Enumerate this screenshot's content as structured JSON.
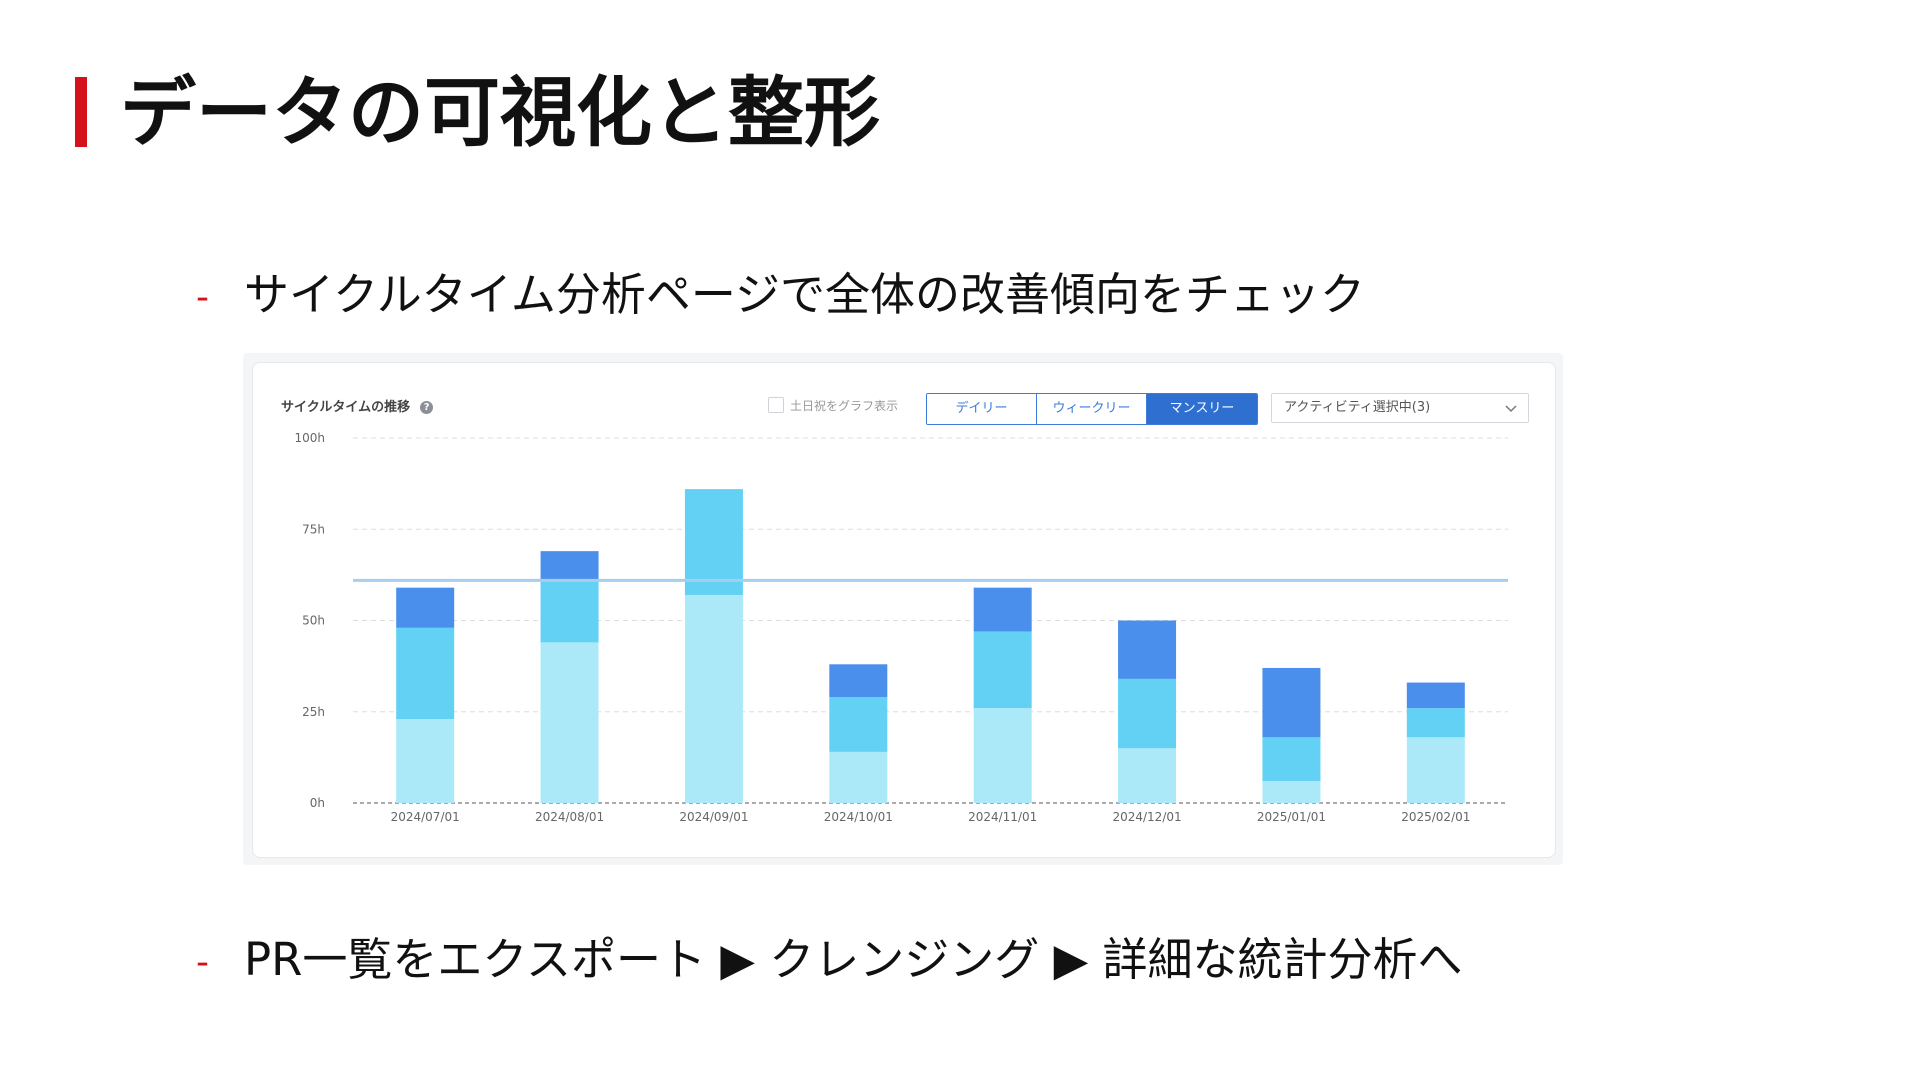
{
  "slide": {
    "title": "データの可視化と整形",
    "bullet_marker": "-",
    "bullet1": "サイクルタイム分析ページで全体の改善傾向をチェック",
    "bullet2": "PR一覧をエクスポート ▶ クレンジング ▶ 詳細な統計分析へ",
    "accent_color": "#d4121c"
  },
  "widget": {
    "title": "サイクルタイムの推移",
    "help_icon": "question-icon",
    "holiday_label": "土日祝をグラフ表示",
    "holiday_checked": false,
    "period_buttons": [
      "デイリー",
      "ウィークリー",
      "マンスリー"
    ],
    "active_period": "マンスリー",
    "activity_select": "アクティビティ選択中(3)",
    "select_icon": "chevron-down-icon"
  },
  "chart_data": {
    "type": "bar",
    "stacked": true,
    "categories": [
      "2024/07/01",
      "2024/08/01",
      "2024/09/01",
      "2024/10/01",
      "2024/11/01",
      "2024/12/01",
      "2025/01/01",
      "2025/02/01"
    ],
    "series": [
      {
        "values": [
          23,
          44,
          57,
          14,
          26,
          15,
          6,
          18
        ],
        "color": "#abe9f9"
      },
      {
        "values": [
          25,
          17,
          29,
          15,
          21,
          19,
          12,
          8
        ],
        "color": "#62d1f4"
      },
      {
        "values": [
          11,
          8,
          0,
          9,
          12,
          16,
          19,
          7
        ],
        "color": "#4a8fec"
      }
    ],
    "reference_line": {
      "value": 61,
      "color": "#a9cdef"
    },
    "ylim": [
      0,
      100
    ],
    "yticks": [
      "0h",
      "25h",
      "50h",
      "75h",
      "100h"
    ],
    "ytick_values": [
      0,
      25,
      50,
      75,
      100
    ],
    "grid": true,
    "legend": "none"
  }
}
